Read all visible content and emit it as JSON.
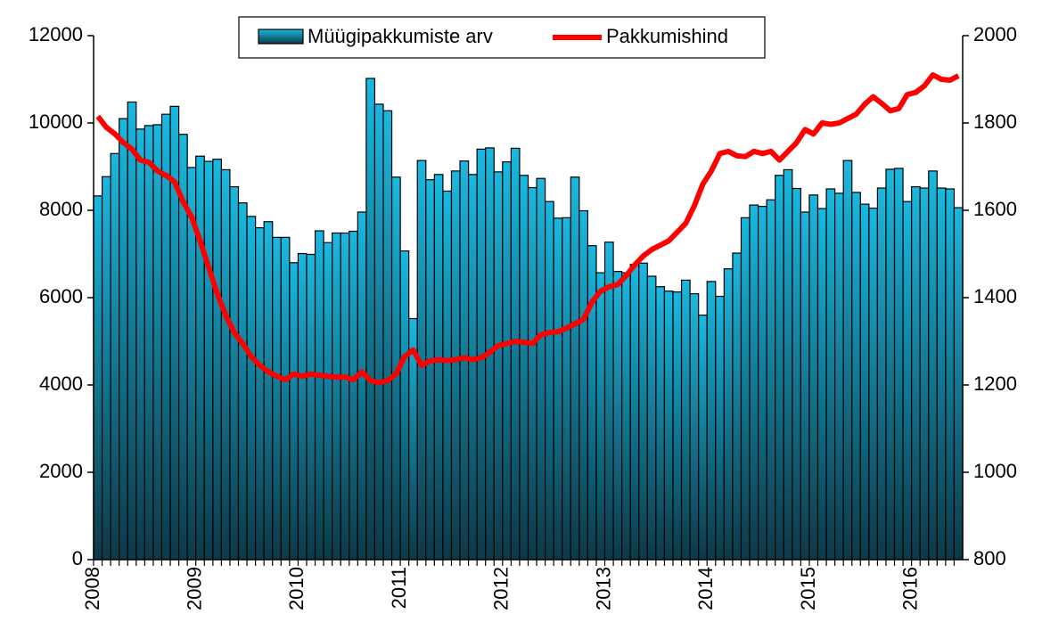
{
  "chart_data": {
    "type": "bar_line",
    "categories": [
      "2008",
      null,
      null,
      null,
      null,
      null,
      null,
      null,
      null,
      null,
      null,
      null,
      "2009",
      null,
      null,
      null,
      null,
      null,
      null,
      null,
      null,
      null,
      null,
      null,
      "2010",
      null,
      null,
      null,
      null,
      null,
      null,
      null,
      null,
      null,
      null,
      null,
      "2011",
      null,
      null,
      null,
      null,
      null,
      null,
      null,
      null,
      null,
      null,
      null,
      "2012",
      null,
      null,
      null,
      null,
      null,
      null,
      null,
      null,
      null,
      null,
      null,
      "2013",
      null,
      null,
      null,
      null,
      null,
      null,
      null,
      null,
      null,
      null,
      null,
      "2014",
      null,
      null,
      null,
      null,
      null,
      null,
      null,
      null,
      null,
      null,
      null,
      "2015",
      null,
      null,
      null,
      null,
      null,
      null,
      null,
      null,
      null,
      null,
      null,
      "2016",
      null,
      null,
      null,
      null,
      null
    ],
    "series": [
      {
        "name": "Müügipakkumiste arv",
        "type": "bar",
        "color": "#1ab8e0",
        "values": [
          8330,
          8770,
          9300,
          10100,
          10480,
          9860,
          9940,
          9960,
          10200,
          10380,
          9740,
          8980,
          9240,
          9120,
          9170,
          8930,
          8540,
          8170,
          7860,
          7600,
          7740,
          7380,
          7380,
          6800,
          7010,
          6990,
          7530,
          7260,
          7480,
          7480,
          7520,
          7960,
          11020,
          10430,
          10280,
          8760,
          7070,
          5520,
          9140,
          8700,
          8820,
          8440,
          8900,
          9130,
          8820,
          9400,
          9430,
          8880,
          9110,
          9420,
          8800,
          8520,
          8730,
          8200,
          7820,
          7830,
          8760,
          7990,
          7190,
          6570,
          7270,
          6600,
          6570,
          6760,
          6790,
          6490,
          6250,
          6150,
          6130,
          6400,
          6090,
          5600,
          6370,
          6030,
          6660,
          7020,
          7830,
          8120,
          8090,
          8240,
          8800,
          8930,
          8500,
          7960,
          8350,
          8040,
          8490,
          8390,
          9140,
          8410,
          8140,
          8050,
          8510,
          8940,
          8960,
          8200,
          8540,
          8510,
          8900,
          8510,
          8490,
          8060
        ]
      },
      {
        "name": "Pakkumishind",
        "type": "line",
        "axis": "y2",
        "color": "#ff0000",
        "values": [
          1815,
          1790,
          1775,
          1755,
          1740,
          1715,
          1710,
          1690,
          1680,
          1665,
          1620,
          1585,
          1530,
          1470,
          1410,
          1360,
          1320,
          1295,
          1265,
          1245,
          1230,
          1220,
          1212,
          1225,
          1220,
          1225,
          1222,
          1220,
          1218,
          1218,
          1212,
          1230,
          1210,
          1205,
          1210,
          1225,
          1265,
          1280,
          1245,
          1255,
          1258,
          1256,
          1258,
          1262,
          1258,
          1262,
          1275,
          1290,
          1295,
          1300,
          1298,
          1295,
          1315,
          1320,
          1322,
          1330,
          1340,
          1350,
          1390,
          1415,
          1425,
          1430,
          1450,
          1475,
          1495,
          1510,
          1520,
          1530,
          1550,
          1570,
          1610,
          1660,
          1690,
          1730,
          1735,
          1725,
          1723,
          1735,
          1730,
          1735,
          1715,
          1735,
          1755,
          1785,
          1775,
          1800,
          1797,
          1800,
          1810,
          1820,
          1843,
          1860,
          1845,
          1828,
          1833,
          1865,
          1870,
          1885,
          1910,
          1900,
          1898,
          1908
        ]
      }
    ],
    "ylim": [
      0,
      12000
    ],
    "yticks": [
      0,
      2000,
      4000,
      6000,
      8000,
      10000,
      12000
    ],
    "y2lim": [
      800,
      2000
    ],
    "y2ticks": [
      800,
      1000,
      1200,
      1400,
      1600,
      1800,
      2000
    ],
    "legend": "top"
  }
}
